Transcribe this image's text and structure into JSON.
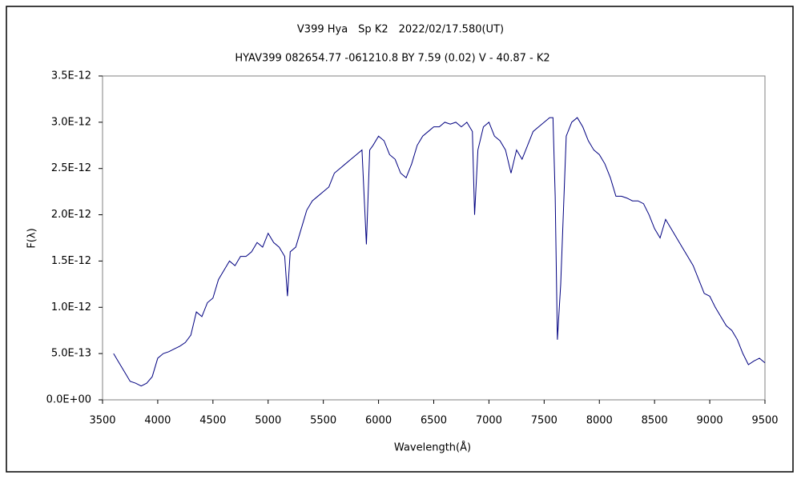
{
  "chart_data": {
    "type": "line",
    "title": "V399 Hya　Sp K2　2022/02/17.580(UT)",
    "subtitle": "HYAV399 082654.77 -061210.8 BY 7.59 (0.02) V - 40.87 - K2",
    "x_label": "Wavelength(Å)",
    "y_label": "F(λ)",
    "xlim": [
      3500,
      9500
    ],
    "xticks": [
      3500,
      4000,
      4500,
      5000,
      5500,
      6000,
      6500,
      7000,
      7500,
      8000,
      8500,
      9000,
      9500
    ],
    "ylim": [
      0,
      3.5e-12
    ],
    "yticks": [
      {
        "value": 0,
        "label": "0.0E+00"
      },
      {
        "value": 5e-13,
        "label": "5.0E-13"
      },
      {
        "value": 1e-12,
        "label": "1.0E-12"
      },
      {
        "value": 1.5e-12,
        "label": "1.5E-12"
      },
      {
        "value": 2e-12,
        "label": "2.0E-12"
      },
      {
        "value": 2.5e-12,
        "label": "2.5E-12"
      },
      {
        "value": 3e-12,
        "label": "3.0E-12"
      },
      {
        "value": 3.5e-12,
        "label": "3.5E-12"
      }
    ],
    "grid": false,
    "x": [
      3600,
      3650,
      3700,
      3750,
      3800,
      3850,
      3900,
      3950,
      4000,
      4050,
      4100,
      4150,
      4200,
      4250,
      4300,
      4350,
      4400,
      4450,
      4500,
      4550,
      4600,
      4650,
      4700,
      4750,
      4800,
      4850,
      4900,
      4950,
      5000,
      5050,
      5100,
      5150,
      5175,
      5200,
      5250,
      5300,
      5350,
      5400,
      5450,
      5500,
      5550,
      5600,
      5650,
      5700,
      5750,
      5800,
      5850,
      5890,
      5920,
      5950,
      6000,
      6050,
      6100,
      6150,
      6200,
      6250,
      6300,
      6350,
      6400,
      6450,
      6500,
      6550,
      6600,
      6650,
      6700,
      6750,
      6800,
      6850,
      6870,
      6900,
      6950,
      7000,
      7050,
      7100,
      7150,
      7200,
      7250,
      7300,
      7350,
      7400,
      7450,
      7500,
      7550,
      7580,
      7600,
      7620,
      7650,
      7700,
      7750,
      7800,
      7850,
      7900,
      7950,
      8000,
      8050,
      8100,
      8150,
      8200,
      8250,
      8300,
      8350,
      8400,
      8450,
      8500,
      8550,
      8600,
      8650,
      8700,
      8750,
      8800,
      8850,
      8900,
      8950,
      9000,
      9050,
      9100,
      9150,
      9200,
      9250,
      9300,
      9350,
      9400,
      9450,
      9500
    ],
    "series": [
      {
        "name": "V399 Hya",
        "color": "#000080",
        "values": [
          5e-13,
          4e-13,
          3e-13,
          2e-13,
          1.8e-13,
          1.5e-13,
          1.8e-13,
          2.5e-13,
          4.5e-13,
          5e-13,
          5.2e-13,
          5.5e-13,
          5.8e-13,
          6.2e-13,
          7e-13,
          9.5e-13,
          9e-13,
          1.05e-12,
          1.1e-12,
          1.3e-12,
          1.4e-12,
          1.5e-12,
          1.45e-12,
          1.55e-12,
          1.55e-12,
          1.6e-12,
          1.7e-12,
          1.65e-12,
          1.8e-12,
          1.7e-12,
          1.65e-12,
          1.55e-12,
          1.12e-12,
          1.6e-12,
          1.65e-12,
          1.85e-12,
          2.05e-12,
          2.15e-12,
          2.2e-12,
          2.25e-12,
          2.3e-12,
          2.45e-12,
          2.5e-12,
          2.55e-12,
          2.6e-12,
          2.65e-12,
          2.7e-12,
          1.68e-12,
          2.7e-12,
          2.75e-12,
          2.85e-12,
          2.8e-12,
          2.65e-12,
          2.6e-12,
          2.45e-12,
          2.4e-12,
          2.55e-12,
          2.75e-12,
          2.85e-12,
          2.9e-12,
          2.95e-12,
          2.95e-12,
          3e-12,
          2.98e-12,
          3e-12,
          2.95e-12,
          3e-12,
          2.9e-12,
          2e-12,
          2.7e-12,
          2.95e-12,
          3e-12,
          2.85e-12,
          2.8e-12,
          2.7e-12,
          2.45e-12,
          2.7e-12,
          2.6e-12,
          2.75e-12,
          2.9e-12,
          2.95e-12,
          3e-12,
          3.05e-12,
          3.05e-12,
          2.2e-12,
          6.5e-13,
          1.25e-12,
          2.85e-12,
          3e-12,
          3.05e-12,
          2.95e-12,
          2.8e-12,
          2.7e-12,
          2.65e-12,
          2.55e-12,
          2.4e-12,
          2.2e-12,
          2.2e-12,
          2.18e-12,
          2.15e-12,
          2.15e-12,
          2.12e-12,
          2e-12,
          1.85e-12,
          1.75e-12,
          1.95e-12,
          1.85e-12,
          1.75e-12,
          1.65e-12,
          1.55e-12,
          1.45e-12,
          1.3e-12,
          1.15e-12,
          1.12e-12,
          1e-12,
          9e-13,
          8e-13,
          7.5e-13,
          6.5e-13,
          5e-13,
          3.8e-13,
          4.2e-13,
          4.5e-13,
          4e-13
        ]
      }
    ]
  }
}
